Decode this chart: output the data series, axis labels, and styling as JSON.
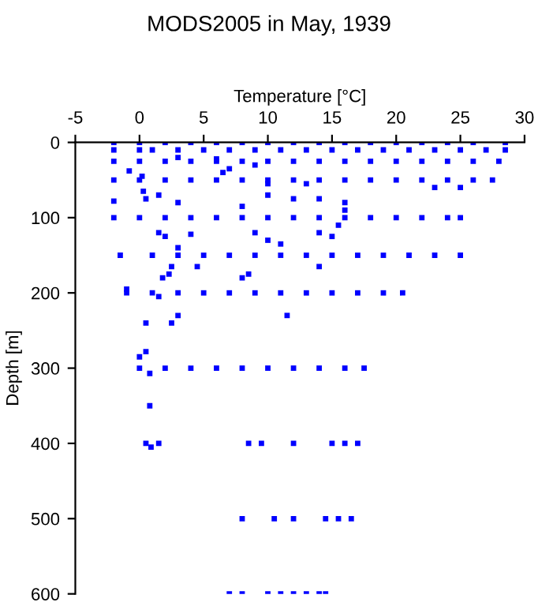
{
  "chart_data": {
    "type": "scatter",
    "title": "MODS2005 in May, 1939",
    "xlabel": "Temperature [°C]",
    "ylabel": "Depth [m]",
    "xlim": [
      -5,
      30
    ],
    "xticks": [
      -5,
      0,
      5,
      10,
      15,
      20,
      25,
      30
    ],
    "ylim": [
      600,
      0
    ],
    "yticks": [
      0,
      100,
      200,
      300,
      400,
      500,
      600
    ],
    "grid": false,
    "legend": false,
    "marker": "square",
    "series": [
      {
        "color": "#0000ff",
        "x": [
          -2,
          0,
          2,
          4,
          6,
          8,
          10,
          12,
          14,
          16,
          18,
          20,
          22,
          24,
          26,
          28.5,
          -2,
          0,
          1,
          3,
          5,
          7,
          9,
          11,
          13,
          15,
          17,
          19,
          21,
          23,
          25,
          27,
          28.5,
          -2,
          0,
          2,
          4,
          6,
          8,
          10,
          12,
          14,
          16,
          18,
          20,
          22,
          24,
          26,
          28,
          -2,
          0,
          2,
          4,
          6,
          8,
          10,
          12,
          14,
          16,
          18,
          20,
          22,
          24,
          26,
          27.5,
          23,
          25,
          -2,
          0,
          2,
          4,
          6,
          8,
          10,
          12,
          14,
          16,
          18,
          20,
          22,
          24,
          25,
          -1.5,
          1,
          3,
          5,
          7,
          9,
          11,
          13,
          15,
          17,
          19,
          21,
          23,
          25,
          -1,
          1,
          3,
          5,
          7,
          9,
          11,
          13,
          15,
          17,
          19,
          20.5,
          0,
          2,
          4,
          6,
          8,
          10,
          12,
          14,
          16,
          17.5,
          0.5,
          1.5,
          8.5,
          9.5,
          12,
          15,
          16,
          17,
          8,
          10.5,
          12,
          14.5,
          15.5,
          16.5,
          7,
          8,
          10,
          11,
          12,
          13,
          14,
          14.5,
          -0.8,
          0.2,
          0.3,
          0.5,
          1.5,
          3,
          -2,
          1.5,
          2,
          3,
          4,
          2.5,
          2.3,
          1.8,
          4.5,
          -1,
          1.5,
          0.5,
          2.5,
          3,
          11.5,
          7,
          9,
          6.5,
          8,
          10,
          12,
          14,
          16,
          16,
          9,
          10,
          11,
          14,
          15,
          15.5,
          8.5,
          8,
          14,
          0,
          0.5,
          0.8,
          0.9,
          0.8,
          10,
          13,
          6,
          3
        ],
        "values": [
          0,
          0,
          0,
          0,
          0,
          0,
          0,
          0,
          0,
          0,
          0,
          0,
          0,
          0,
          0,
          0,
          10,
          10,
          10,
          10,
          10,
          10,
          10,
          10,
          10,
          10,
          10,
          10,
          10,
          10,
          10,
          10,
          10,
          25,
          25,
          25,
          25,
          25,
          25,
          25,
          25,
          25,
          25,
          25,
          25,
          25,
          25,
          25,
          25,
          50,
          50,
          50,
          50,
          50,
          50,
          50,
          50,
          50,
          50,
          50,
          50,
          50,
          50,
          50,
          50,
          60,
          60,
          100,
          100,
          100,
          100,
          100,
          100,
          100,
          100,
          100,
          100,
          100,
          100,
          100,
          100,
          100,
          150,
          150,
          150,
          150,
          150,
          150,
          150,
          150,
          150,
          150,
          150,
          150,
          150,
          150,
          200,
          200,
          200,
          200,
          200,
          200,
          200,
          200,
          200,
          200,
          200,
          200,
          300,
          300,
          300,
          300,
          300,
          300,
          300,
          300,
          300,
          300,
          400,
          400,
          400,
          400,
          400,
          400,
          400,
          400,
          500,
          500,
          500,
          500,
          500,
          500,
          600,
          600,
          600,
          600,
          600,
          600,
          600,
          600,
          38,
          45,
          65,
          75,
          70,
          80,
          78,
          120,
          125,
          140,
          122,
          165,
          175,
          180,
          165,
          195,
          205,
          240,
          240,
          230,
          230,
          35,
          30,
          40,
          85,
          70,
          75,
          75,
          80,
          90,
          120,
          130,
          135,
          120,
          125,
          110,
          175,
          180,
          165,
          285,
          278,
          350,
          405,
          307,
          55,
          55,
          22,
          20
        ]
      }
    ]
  }
}
